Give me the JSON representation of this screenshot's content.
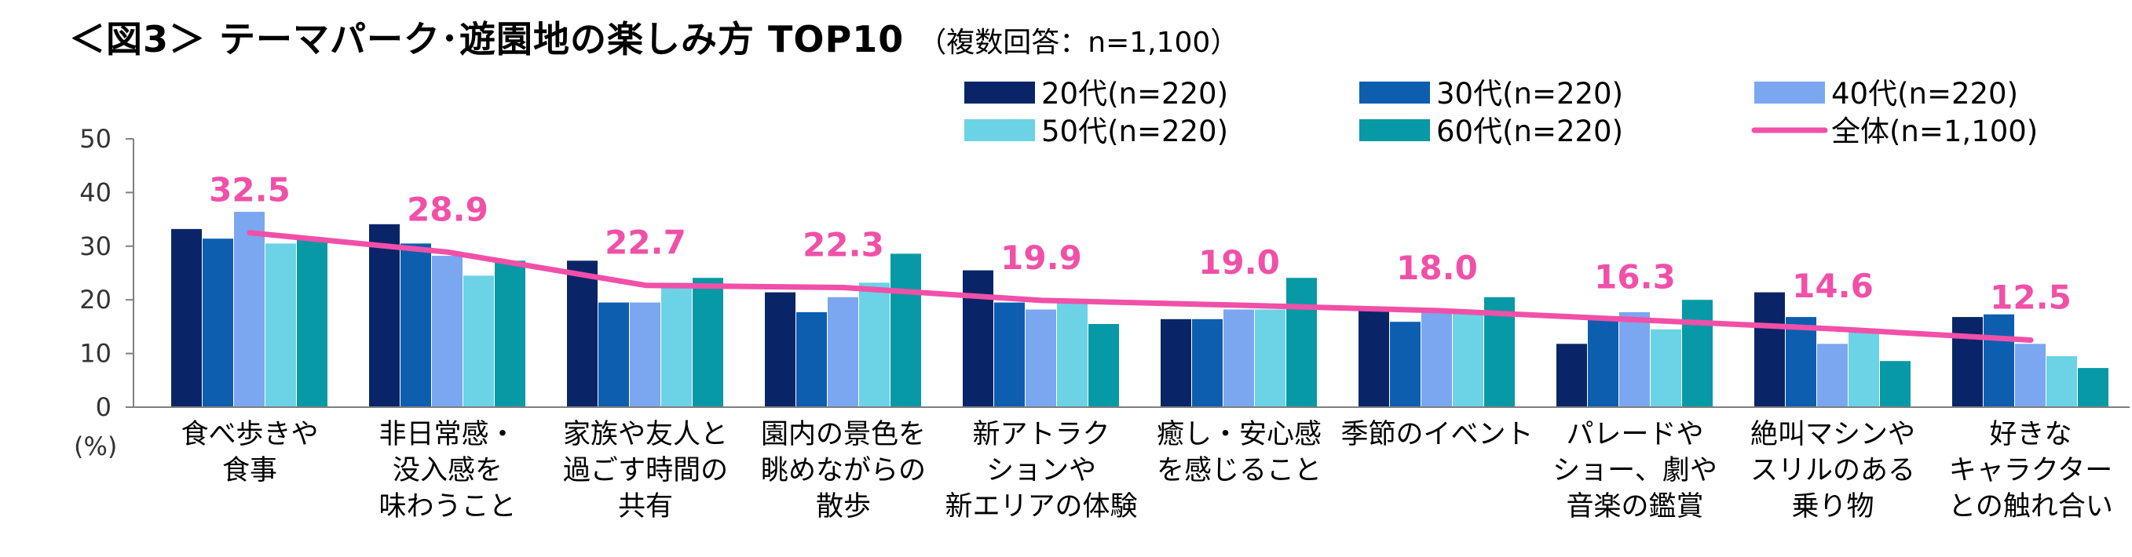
{
  "title": "＜図3＞ テーマパーク･遊園地の楽しみ方 TOP10",
  "subtitle": "（複数回答：n=1,100）",
  "chart_data": {
    "type": "bar",
    "title": "＜図3＞ テーマパーク･遊園地の楽しみ方 TOP10",
    "subtitle": "（複数回答：n=1,100）",
    "ylabel": "(%)",
    "ylim": [
      0,
      50
    ],
    "yticks": [
      0,
      10,
      20,
      30,
      40,
      50
    ],
    "grid": false,
    "legend_position": "top-right",
    "categories": [
      [
        "食べ歩きや",
        "食事"
      ],
      [
        "非日常感・",
        "没入感を",
        "味わうこと"
      ],
      [
        "家族や友人と",
        "過ごす時間の",
        "共有"
      ],
      [
        "園内の景色を",
        "眺めながらの",
        "散歩"
      ],
      [
        "新アトラク",
        "ションや",
        "新エリアの体験"
      ],
      [
        "癒し・安心感",
        "を感じること"
      ],
      [
        "季節のイベント"
      ],
      [
        "パレードや",
        "ショー、劇や",
        "音楽の鑑賞"
      ],
      [
        "絶叫マシンや",
        "スリルのある",
        "乗り物"
      ],
      [
        "好きな",
        "キャラクター",
        "との触れ合い"
      ]
    ],
    "series": [
      {
        "name": "20代(n=220)",
        "color": "#0a2567",
        "values": [
          33.2,
          34.1,
          27.3,
          21.4,
          25.5,
          16.4,
          18.2,
          11.8,
          21.4,
          16.8
        ]
      },
      {
        "name": "30代(n=220)",
        "color": "#0d5eaf",
        "values": [
          31.4,
          30.5,
          19.5,
          17.7,
          19.5,
          16.4,
          15.9,
          16.4,
          16.8,
          17.3
        ]
      },
      {
        "name": "40代(n=220)",
        "color": "#7aa7f0",
        "values": [
          36.4,
          28.2,
          19.5,
          20.5,
          18.2,
          18.2,
          17.7,
          17.7,
          11.8,
          11.8
        ]
      },
      {
        "name": "50代(n=220)",
        "color": "#6cd2e6",
        "values": [
          30.5,
          24.5,
          23.2,
          23.2,
          19.5,
          18.2,
          17.7,
          14.5,
          14.1,
          9.5
        ]
      },
      {
        "name": "60代(n=220)",
        "color": "#0899a6",
        "values": [
          31.4,
          27.3,
          24.1,
          28.6,
          15.5,
          24.1,
          20.5,
          20.0,
          8.6,
          7.3
        ]
      }
    ],
    "line": {
      "name": "全体(n=1,100)",
      "color": "#f050a8",
      "values": [
        32.5,
        28.9,
        22.7,
        22.3,
        19.9,
        19.0,
        18.0,
        16.3,
        14.6,
        12.5
      ],
      "labels": [
        "32.5",
        "28.9",
        "22.7",
        "22.3",
        "19.9",
        "19.0",
        "18.0",
        "16.3",
        "14.6",
        "12.5"
      ]
    }
  }
}
